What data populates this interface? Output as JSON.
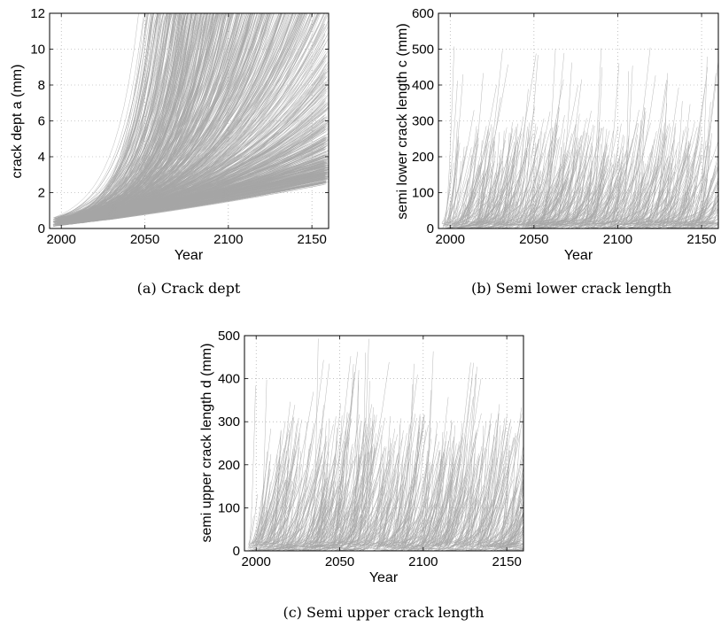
{
  "chart_data": [
    {
      "panel": "a",
      "type": "line",
      "caption": "(a)  Crack dept",
      "xlabel": "Year",
      "ylabel": "crack dept a (mm)",
      "xlim": [
        1993,
        2160
      ],
      "ylim": [
        0,
        12
      ],
      "xticks": [
        2000,
        2050,
        2100,
        2150
      ],
      "yticks": [
        0,
        2,
        4,
        6,
        8,
        10,
        12
      ],
      "grid": true,
      "line_color": "#a6a6a6",
      "description_of_series": "many stochastic crack-depth growth paths",
      "series": {
        "count": 900,
        "start_range": [
          1995,
          2030
        ],
        "start_value_range": [
          0.1,
          0.6
        ],
        "baseline_end_value": 2.3,
        "max_value": 12
      }
    },
    {
      "panel": "b",
      "type": "line",
      "caption": "(b)  Semi lower crack length",
      "xlabel": "Year",
      "ylabel": "semi lower crack length c (mm)",
      "xlim": [
        1993,
        2160
      ],
      "ylim": [
        0,
        600
      ],
      "xticks": [
        2000,
        2050,
        2100,
        2150
      ],
      "yticks": [
        0,
        100,
        200,
        300,
        400,
        500,
        600
      ],
      "grid": true,
      "line_color": "#a6a6a6",
      "series": {
        "count": 900,
        "typical_max": 300,
        "peak_max": 510
      }
    },
    {
      "panel": "c",
      "type": "line",
      "caption": "(c)  Semi upper crack length",
      "xlabel": "Year",
      "ylabel": "semi upper crack length d (mm)",
      "xlim": [
        1993,
        2160
      ],
      "ylim": [
        0,
        500
      ],
      "xticks": [
        2000,
        2050,
        2100,
        2150
      ],
      "yticks": [
        0,
        100,
        200,
        300,
        400,
        500
      ],
      "grid": true,
      "line_color": "#a6a6a6",
      "series": {
        "count": 900,
        "typical_max": 320,
        "peak_max": 500
      }
    }
  ]
}
